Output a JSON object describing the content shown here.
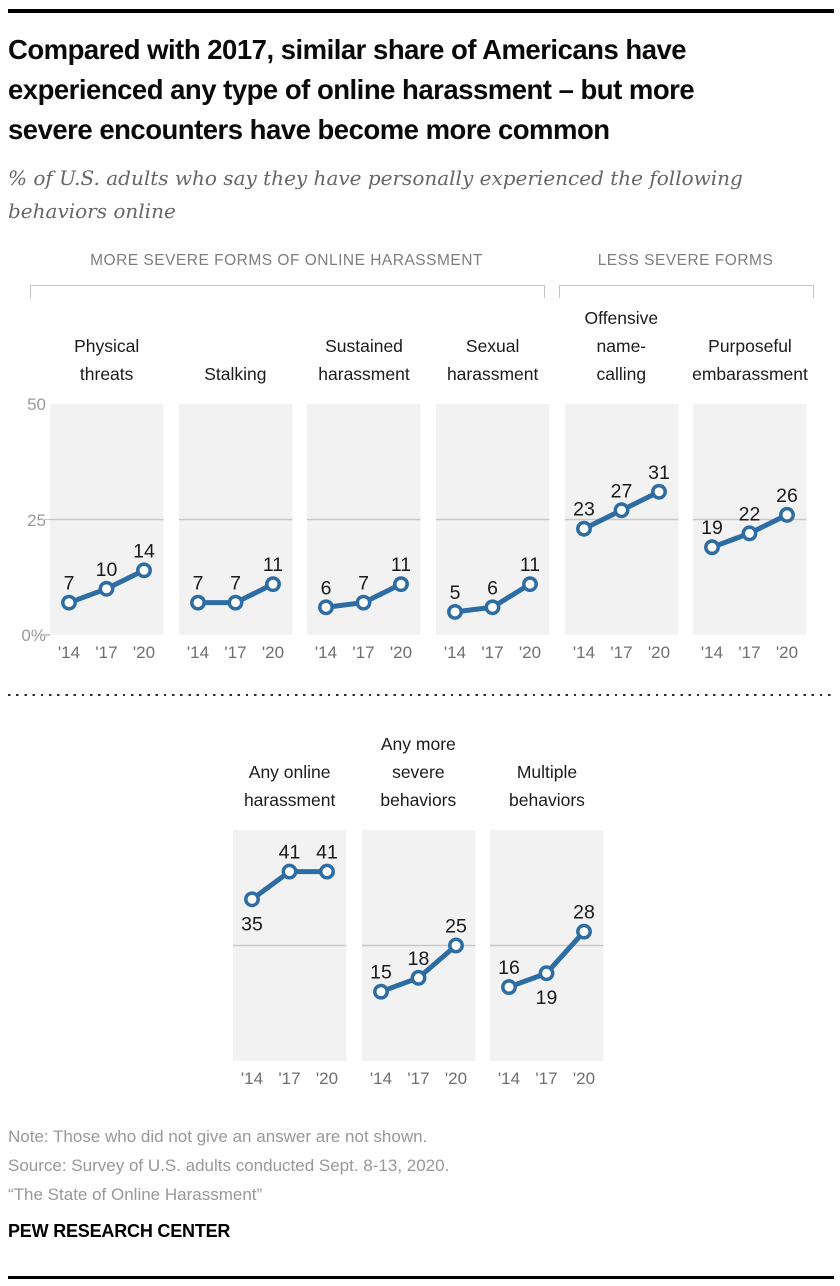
{
  "header": {
    "title_lines": [
      "Compared with 2017, similar share of Americans have",
      "experienced any type of online harassment – but more",
      "severe encounters have become more common"
    ],
    "subtitle_lines": [
      "% of U.S. adults who say they have personally experienced the following",
      "behaviors online"
    ]
  },
  "section_labels": {
    "more_severe": "MORE SEVERE FORMS OF ONLINE HARASSMENT",
    "less_severe": "LESS SEVERE FORMS"
  },
  "chart_data": {
    "type": "line",
    "x_tick_labels": [
      "'14",
      "'17",
      "'20"
    ],
    "x_values": [
      2014,
      2017,
      2020
    ],
    "ylim": [
      0,
      50
    ],
    "y_tick_labels": [
      "50",
      "25",
      "0%"
    ],
    "gridline_y": 25,
    "grid": "single horizontal gridline at 25 in every panel",
    "legend_position": "none",
    "line_color": "#2e6da4",
    "marker": "open-circle",
    "rows": [
      {
        "group": "top",
        "panels": [
          {
            "series_name": "Physical threats",
            "title_lines": [
              "Physical",
              "threats"
            ],
            "values": [
              7,
              10,
              14
            ]
          },
          {
            "series_name": "Stalking",
            "title_lines": [
              "Stalking"
            ],
            "values": [
              7,
              7,
              11
            ]
          },
          {
            "series_name": "Sustained harassment",
            "title_lines": [
              "Sustained",
              "harassment"
            ],
            "values": [
              6,
              7,
              11
            ]
          },
          {
            "series_name": "Sexual harassment",
            "title_lines": [
              "Sexual",
              "harassment"
            ],
            "values": [
              5,
              6,
              11
            ]
          },
          {
            "series_name": "Offensive name-calling",
            "title_lines": [
              "Offensive",
              "name-",
              "calling"
            ],
            "values": [
              23,
              27,
              31
            ]
          },
          {
            "series_name": "Purposeful embarassment",
            "title_lines": [
              "Purposeful",
              "embarassment"
            ],
            "values": [
              19,
              22,
              26
            ]
          }
        ]
      },
      {
        "group": "bottom",
        "panels": [
          {
            "series_name": "Any online harassment",
            "title_lines": [
              "Any online",
              "harassment"
            ],
            "values": [
              35,
              41,
              41
            ],
            "label_below": [
              true,
              false,
              false
            ]
          },
          {
            "series_name": "Any more severe behaviors",
            "title_lines": [
              "Any more",
              "severe",
              "behaviors"
            ],
            "values": [
              15,
              18,
              25
            ],
            "label_below": [
              false,
              false,
              false
            ]
          },
          {
            "series_name": "Multiple behaviors",
            "title_lines": [
              "Multiple",
              "behaviors"
            ],
            "values": [
              16,
              19,
              28
            ],
            "label_below": [
              false,
              true,
              false
            ]
          }
        ]
      }
    ]
  },
  "footer": {
    "note": "Note: Those who did not give an answer are not shown.",
    "source": "Source: Survey of U.S. adults conducted Sept. 8-13, 2020.",
    "report": "“The State of Online Harassment”",
    "org": "PEW RESEARCH CENTER"
  }
}
